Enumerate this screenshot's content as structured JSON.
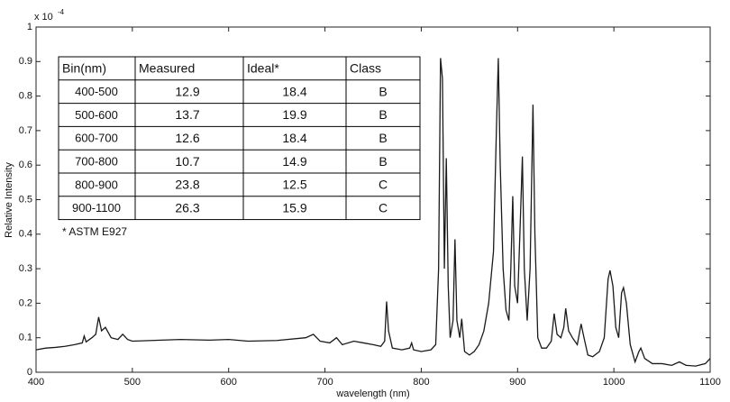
{
  "chart_data": {
    "type": "line",
    "x_label": "wavelength (nm)",
    "y_label": "Relative Intensity",
    "y_multiplier": "x 10",
    "y_exponent": "-4",
    "x": [
      400,
      410,
      420,
      430,
      440,
      448,
      450,
      452,
      458,
      462,
      465,
      468,
      472,
      478,
      485,
      490,
      495,
      500,
      520,
      550,
      580,
      600,
      620,
      650,
      680,
      688,
      695,
      705,
      712,
      718,
      730,
      740,
      750,
      758,
      762,
      764,
      766,
      770,
      780,
      788,
      790,
      792,
      800,
      810,
      815,
      818,
      820,
      822,
      824,
      826,
      828,
      830,
      833,
      835,
      837,
      840,
      842,
      845,
      850,
      855,
      860,
      865,
      870,
      875,
      878,
      880,
      882,
      885,
      888,
      891,
      893,
      895,
      897,
      900,
      903,
      905,
      907,
      910,
      913,
      916,
      918,
      921,
      925,
      930,
      935,
      938,
      941,
      945,
      948,
      950,
      953,
      957,
      962,
      966,
      969,
      973,
      978,
      985,
      990,
      994,
      996,
      999,
      1002,
      1005,
      1008,
      1010,
      1013,
      1017,
      1022,
      1026,
      1028,
      1032,
      1040,
      1050,
      1060,
      1068,
      1075,
      1085,
      1095,
      1100
    ],
    "values": [
      0.065,
      0.07,
      0.072,
      0.075,
      0.08,
      0.085,
      0.105,
      0.088,
      0.1,
      0.11,
      0.16,
      0.12,
      0.13,
      0.1,
      0.095,
      0.11,
      0.095,
      0.09,
      0.092,
      0.095,
      0.093,
      0.095,
      0.09,
      0.092,
      0.1,
      0.11,
      0.09,
      0.085,
      0.1,
      0.08,
      0.09,
      0.085,
      0.08,
      0.075,
      0.09,
      0.205,
      0.12,
      0.07,
      0.065,
      0.07,
      0.085,
      0.065,
      0.06,
      0.065,
      0.08,
      0.3,
      0.91,
      0.85,
      0.3,
      0.62,
      0.25,
      0.1,
      0.15,
      0.385,
      0.15,
      0.1,
      0.155,
      0.06,
      0.05,
      0.06,
      0.08,
      0.12,
      0.2,
      0.35,
      0.7,
      0.91,
      0.6,
      0.3,
      0.18,
      0.15,
      0.3,
      0.51,
      0.25,
      0.2,
      0.45,
      0.625,
      0.3,
      0.15,
      0.3,
      0.775,
      0.4,
      0.1,
      0.07,
      0.07,
      0.09,
      0.17,
      0.11,
      0.1,
      0.13,
      0.185,
      0.12,
      0.1,
      0.08,
      0.14,
      0.1,
      0.05,
      0.045,
      0.06,
      0.1,
      0.27,
      0.295,
      0.25,
      0.13,
      0.1,
      0.23,
      0.245,
      0.2,
      0.08,
      0.03,
      0.06,
      0.07,
      0.04,
      0.025,
      0.025,
      0.02,
      0.03,
      0.02,
      0.018,
      0.025,
      0.04
    ],
    "color": "#1a1a1a",
    "xlim": [
      400,
      1100
    ],
    "xticks": [
      400,
      500,
      600,
      700,
      800,
      900,
      1000,
      1100
    ],
    "ylim": [
      0,
      1
    ],
    "yticks": [
      0,
      0.1,
      0.2,
      0.3,
      0.4,
      0.5,
      0.6,
      0.7,
      0.8,
      0.9,
      1
    ],
    "grid": false,
    "table": {
      "header": [
        "Bin(nm)",
        "Measured",
        "Ideal*",
        "Class"
      ],
      "rows": [
        [
          "400-500",
          12.9,
          18.4,
          "B"
        ],
        [
          "500-600",
          13.7,
          19.9,
          "B"
        ],
        [
          "600-700",
          12.6,
          18.4,
          "B"
        ],
        [
          "700-800",
          10.7,
          14.9,
          "B"
        ],
        [
          "800-900",
          23.8,
          12.5,
          "C"
        ],
        [
          "900-1100",
          26.3,
          15.9,
          "C"
        ]
      ],
      "note": "* ASTM E927"
    }
  }
}
